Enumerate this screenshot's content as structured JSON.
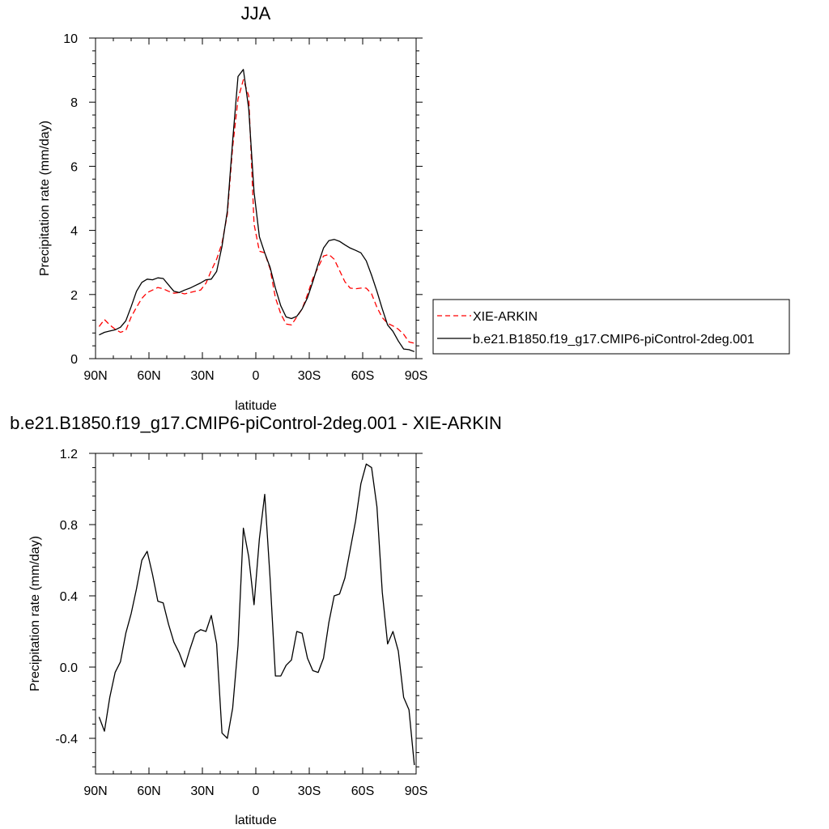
{
  "chart_data": [
    {
      "type": "line",
      "title": "JJA",
      "xlabel": "latitude",
      "ylabel": "Precipitation rate (mm/day)",
      "xlim": [
        90,
        -90
      ],
      "ylim": [
        0,
        10
      ],
      "x_ticks": [
        90,
        60,
        30,
        0,
        -30,
        -60,
        -90
      ],
      "x_tick_labels": [
        "90N",
        "60N",
        "30N",
        "0",
        "30S",
        "60S",
        "90S"
      ],
      "y_ticks": [
        0,
        2,
        4,
        6,
        8,
        10
      ],
      "y_tick_labels": [
        "0",
        "2",
        "4",
        "6",
        "8",
        "10"
      ],
      "legend_position": "right",
      "series": [
        {
          "name": "XIE-ARKIN",
          "color": "#ff0000",
          "dash": "dashed",
          "x": [
            88,
            85,
            82,
            79,
            76,
            73,
            70,
            67,
            64,
            61,
            58,
            55,
            52,
            49,
            46,
            43,
            40,
            37,
            34,
            31,
            28,
            25,
            22,
            19,
            16,
            13,
            10,
            7,
            4,
            1,
            -2,
            -5,
            -8,
            -11,
            -14,
            -17,
            -20,
            -23,
            -26,
            -29,
            -32,
            -35,
            -38,
            -41,
            -44,
            -47,
            -50,
            -53,
            -56,
            -59,
            -62,
            -65,
            -68,
            -71,
            -74,
            -77,
            -80,
            -83,
            -86,
            -89
          ],
          "y": [
            1.0,
            1.22,
            1.05,
            0.92,
            0.82,
            0.88,
            1.3,
            1.6,
            1.88,
            2.06,
            2.14,
            2.22,
            2.18,
            2.1,
            2.04,
            2.06,
            2.02,
            2.06,
            2.1,
            2.14,
            2.35,
            2.75,
            3.1,
            3.6,
            4.5,
            6.6,
            8.1,
            8.7,
            8.2,
            4.2,
            3.35,
            3.3,
            2.8,
            1.9,
            1.4,
            1.08,
            1.05,
            1.3,
            1.55,
            2.0,
            2.5,
            2.85,
            3.2,
            3.25,
            3.1,
            2.75,
            2.4,
            2.2,
            2.18,
            2.2,
            2.2,
            2.02,
            1.6,
            1.28,
            1.1,
            1.02,
            0.92,
            0.76,
            0.52,
            0.48
          ]
        },
        {
          "name": "b.e21.B1850.f19_g17.CMIP6-piControl-2deg.001",
          "color": "#000000",
          "dash": "solid",
          "x": [
            88,
            85,
            82,
            79,
            76,
            73,
            70,
            67,
            64,
            61,
            58,
            55,
            52,
            49,
            46,
            43,
            40,
            37,
            34,
            31,
            28,
            25,
            22,
            19,
            16,
            13,
            10,
            7,
            4,
            1,
            -2,
            -5,
            -8,
            -11,
            -14,
            -17,
            -20,
            -23,
            -26,
            -29,
            -32,
            -35,
            -38,
            -41,
            -44,
            -47,
            -50,
            -53,
            -56,
            -59,
            -62,
            -65,
            -68,
            -71,
            -74,
            -77,
            -80,
            -83,
            -86,
            -89
          ],
          "y": [
            0.74,
            0.82,
            0.86,
            0.9,
            0.98,
            1.18,
            1.62,
            2.1,
            2.38,
            2.48,
            2.46,
            2.52,
            2.5,
            2.3,
            2.1,
            2.06,
            2.14,
            2.2,
            2.28,
            2.36,
            2.46,
            2.48,
            2.72,
            3.5,
            4.6,
            6.8,
            8.8,
            9.02,
            7.8,
            5.2,
            3.8,
            3.3,
            2.85,
            2.2,
            1.65,
            1.3,
            1.25,
            1.32,
            1.55,
            1.9,
            2.4,
            2.95,
            3.45,
            3.68,
            3.72,
            3.66,
            3.55,
            3.45,
            3.38,
            3.3,
            3.05,
            2.6,
            2.1,
            1.55,
            1.05,
            0.85,
            0.55,
            0.3,
            0.28,
            0.22
          ]
        }
      ]
    },
    {
      "type": "line",
      "title": "b.e21.B1850.f19_g17.CMIP6-piControl-2deg.001 - XIE-ARKIN",
      "xlabel": "latitude",
      "ylabel": "Precipitation rate (mm/day)",
      "xlim": [
        90,
        -90
      ],
      "ylim": [
        -0.6,
        1.2
      ],
      "x_ticks": [
        90,
        60,
        30,
        0,
        -30,
        -60,
        -90
      ],
      "x_tick_labels": [
        "90N",
        "60N",
        "30N",
        "0",
        "30S",
        "60S",
        "90S"
      ],
      "y_ticks": [
        -0.4,
        0.0,
        0.4,
        0.8,
        1.2
      ],
      "y_tick_labels": [
        "-0.4",
        "0.0",
        "0.4",
        "0.8",
        "1.2"
      ],
      "series": [
        {
          "color": "#000000",
          "dash": "solid",
          "x": [
            88,
            85,
            82,
            79,
            76,
            73,
            70,
            67,
            64,
            61,
            58,
            55,
            52,
            49,
            46,
            43,
            40,
            37,
            34,
            31,
            28,
            25,
            22,
            19,
            16,
            13,
            10,
            7,
            4,
            1,
            -2,
            -5,
            -8,
            -11,
            -14,
            -17,
            -20,
            -23,
            -26,
            -29,
            -32,
            -35,
            -38,
            -41,
            -44,
            -47,
            -50,
            -53,
            -56,
            -59,
            -62,
            -65,
            -68,
            -71,
            -74,
            -77,
            -80,
            -83,
            -86,
            -89
          ],
          "y": [
            -0.28,
            -0.36,
            -0.17,
            -0.03,
            0.03,
            0.19,
            0.3,
            0.44,
            0.6,
            0.65,
            0.52,
            0.37,
            0.36,
            0.24,
            0.14,
            0.08,
            0.0,
            0.1,
            0.19,
            0.21,
            0.2,
            0.29,
            0.13,
            -0.37,
            -0.4,
            -0.23,
            0.12,
            0.78,
            0.62,
            0.35,
            0.72,
            0.97,
            0.5,
            -0.05,
            -0.05,
            0.01,
            0.04,
            0.2,
            0.19,
            0.05,
            -0.02,
            -0.03,
            0.05,
            0.25,
            0.4,
            0.41,
            0.5,
            0.66,
            0.82,
            1.03,
            1.14,
            1.12,
            0.9,
            0.42,
            0.13,
            0.2,
            0.09,
            -0.17,
            -0.24,
            -0.55
          ]
        }
      ]
    }
  ]
}
